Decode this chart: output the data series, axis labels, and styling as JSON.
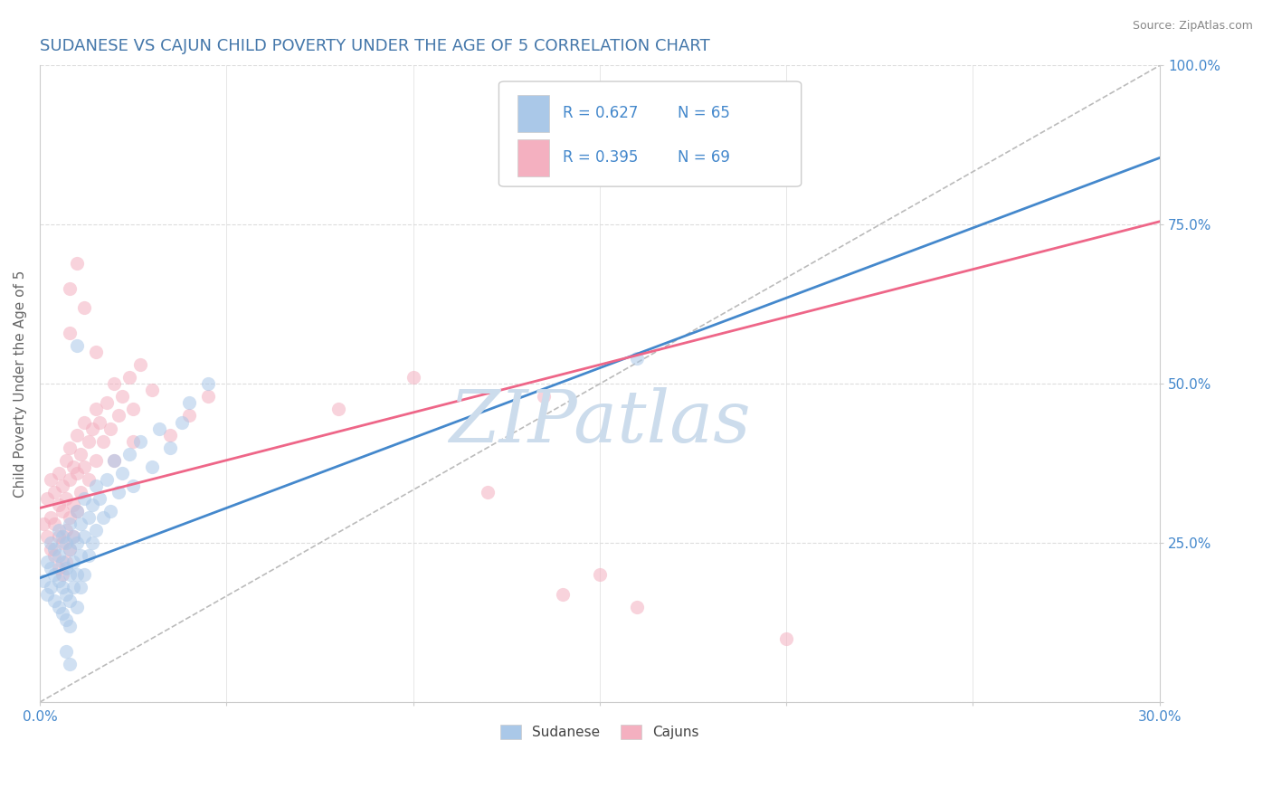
{
  "title": "SUDANESE VS CAJUN CHILD POVERTY UNDER THE AGE OF 5 CORRELATION CHART",
  "source": "Source: ZipAtlas.com",
  "ylabel": "Child Poverty Under the Age of 5",
  "xlim": [
    0.0,
    0.3
  ],
  "ylim": [
    0.0,
    1.0
  ],
  "xticks": [
    0.0,
    0.05,
    0.1,
    0.15,
    0.2,
    0.25,
    0.3
  ],
  "yticks": [
    0.0,
    0.25,
    0.5,
    0.75,
    1.0
  ],
  "background_color": "#ffffff",
  "grid_color": "#dddddd",
  "watermark": "ZIPatlas",
  "watermark_color": "#ccdcec",
  "sudanese_color": "#aac8e8",
  "cajun_color": "#f4b0c0",
  "sudanese_line_color": "#4488cc",
  "cajun_line_color": "#ee6688",
  "ref_line_color": "#bbbbbb",
  "title_color": "#4477aa",
  "tick_label_color": "#4488cc",
  "axis_label_color": "#666666",
  "legend_R1": "R = 0.627",
  "legend_N1": "N = 65",
  "legend_R2": "R = 0.395",
  "legend_N2": "N = 69",
  "legend_label1": "Sudanese",
  "legend_label2": "Cajuns",
  "sudanese_trend": [
    0.0,
    0.3,
    0.195,
    0.855
  ],
  "cajun_trend": [
    0.0,
    0.3,
    0.305,
    0.755
  ],
  "sudanese_scatter": [
    [
      0.001,
      0.19
    ],
    [
      0.002,
      0.22
    ],
    [
      0.002,
      0.17
    ],
    [
      0.003,
      0.25
    ],
    [
      0.003,
      0.21
    ],
    [
      0.003,
      0.18
    ],
    [
      0.004,
      0.24
    ],
    [
      0.004,
      0.2
    ],
    [
      0.004,
      0.16
    ],
    [
      0.005,
      0.27
    ],
    [
      0.005,
      0.23
    ],
    [
      0.005,
      0.19
    ],
    [
      0.005,
      0.15
    ],
    [
      0.006,
      0.26
    ],
    [
      0.006,
      0.22
    ],
    [
      0.006,
      0.18
    ],
    [
      0.006,
      0.14
    ],
    [
      0.007,
      0.25
    ],
    [
      0.007,
      0.21
    ],
    [
      0.007,
      0.17
    ],
    [
      0.007,
      0.13
    ],
    [
      0.008,
      0.28
    ],
    [
      0.008,
      0.24
    ],
    [
      0.008,
      0.2
    ],
    [
      0.008,
      0.16
    ],
    [
      0.008,
      0.12
    ],
    [
      0.009,
      0.26
    ],
    [
      0.009,
      0.22
    ],
    [
      0.009,
      0.18
    ],
    [
      0.01,
      0.3
    ],
    [
      0.01,
      0.25
    ],
    [
      0.01,
      0.2
    ],
    [
      0.01,
      0.15
    ],
    [
      0.011,
      0.28
    ],
    [
      0.011,
      0.23
    ],
    [
      0.011,
      0.18
    ],
    [
      0.012,
      0.32
    ],
    [
      0.012,
      0.26
    ],
    [
      0.012,
      0.2
    ],
    [
      0.013,
      0.29
    ],
    [
      0.013,
      0.23
    ],
    [
      0.014,
      0.31
    ],
    [
      0.014,
      0.25
    ],
    [
      0.015,
      0.34
    ],
    [
      0.015,
      0.27
    ],
    [
      0.016,
      0.32
    ],
    [
      0.017,
      0.29
    ],
    [
      0.018,
      0.35
    ],
    [
      0.019,
      0.3
    ],
    [
      0.02,
      0.38
    ],
    [
      0.021,
      0.33
    ],
    [
      0.022,
      0.36
    ],
    [
      0.024,
      0.39
    ],
    [
      0.025,
      0.34
    ],
    [
      0.027,
      0.41
    ],
    [
      0.03,
      0.37
    ],
    [
      0.032,
      0.43
    ],
    [
      0.035,
      0.4
    ],
    [
      0.038,
      0.44
    ],
    [
      0.04,
      0.47
    ],
    [
      0.045,
      0.5
    ],
    [
      0.01,
      0.56
    ],
    [
      0.16,
      0.54
    ],
    [
      0.007,
      0.08
    ],
    [
      0.008,
      0.06
    ]
  ],
  "cajun_scatter": [
    [
      0.001,
      0.28
    ],
    [
      0.002,
      0.32
    ],
    [
      0.002,
      0.26
    ],
    [
      0.003,
      0.35
    ],
    [
      0.003,
      0.29
    ],
    [
      0.003,
      0.24
    ],
    [
      0.004,
      0.33
    ],
    [
      0.004,
      0.28
    ],
    [
      0.004,
      0.23
    ],
    [
      0.005,
      0.36
    ],
    [
      0.005,
      0.31
    ],
    [
      0.005,
      0.26
    ],
    [
      0.005,
      0.21
    ],
    [
      0.006,
      0.34
    ],
    [
      0.006,
      0.3
    ],
    [
      0.006,
      0.25
    ],
    [
      0.006,
      0.2
    ],
    [
      0.007,
      0.38
    ],
    [
      0.007,
      0.32
    ],
    [
      0.007,
      0.27
    ],
    [
      0.007,
      0.22
    ],
    [
      0.008,
      0.4
    ],
    [
      0.008,
      0.35
    ],
    [
      0.008,
      0.29
    ],
    [
      0.008,
      0.24
    ],
    [
      0.009,
      0.37
    ],
    [
      0.009,
      0.31
    ],
    [
      0.009,
      0.26
    ],
    [
      0.01,
      0.42
    ],
    [
      0.01,
      0.36
    ],
    [
      0.01,
      0.3
    ],
    [
      0.011,
      0.39
    ],
    [
      0.011,
      0.33
    ],
    [
      0.012,
      0.44
    ],
    [
      0.012,
      0.37
    ],
    [
      0.013,
      0.41
    ],
    [
      0.013,
      0.35
    ],
    [
      0.014,
      0.43
    ],
    [
      0.015,
      0.46
    ],
    [
      0.015,
      0.38
    ],
    [
      0.016,
      0.44
    ],
    [
      0.017,
      0.41
    ],
    [
      0.018,
      0.47
    ],
    [
      0.019,
      0.43
    ],
    [
      0.02,
      0.5
    ],
    [
      0.021,
      0.45
    ],
    [
      0.022,
      0.48
    ],
    [
      0.024,
      0.51
    ],
    [
      0.025,
      0.46
    ],
    [
      0.027,
      0.53
    ],
    [
      0.03,
      0.49
    ],
    [
      0.008,
      0.58
    ],
    [
      0.008,
      0.65
    ],
    [
      0.01,
      0.69
    ],
    [
      0.012,
      0.62
    ],
    [
      0.015,
      0.55
    ],
    [
      0.035,
      0.42
    ],
    [
      0.04,
      0.45
    ],
    [
      0.045,
      0.48
    ],
    [
      0.02,
      0.38
    ],
    [
      0.025,
      0.41
    ],
    [
      0.1,
      0.51
    ],
    [
      0.15,
      0.2
    ],
    [
      0.2,
      0.1
    ],
    [
      0.12,
      0.33
    ],
    [
      0.08,
      0.46
    ],
    [
      0.14,
      0.17
    ],
    [
      0.16,
      0.15
    ],
    [
      0.135,
      0.48
    ]
  ]
}
